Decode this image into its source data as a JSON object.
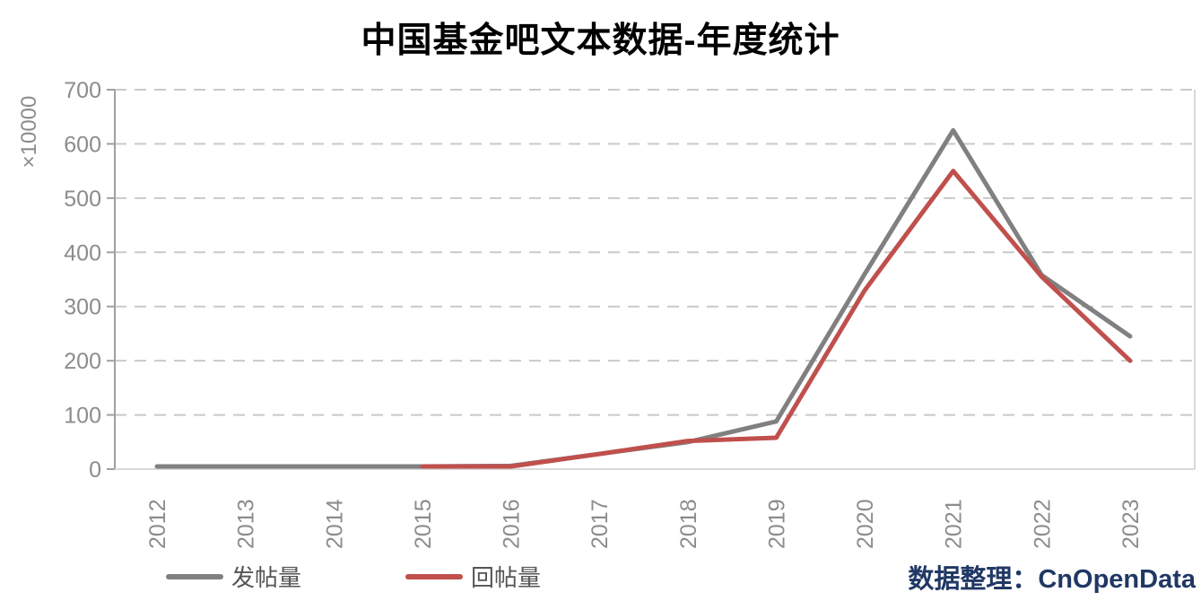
{
  "attribution": "数据整理：CnOpenData",
  "colors": {
    "gridline": "#c9c9c9",
    "y_axis_line": "#a0a0a0",
    "frame_line": "#d9d9d9",
    "tick_label": "#8c8c8c",
    "title_text": "#000000",
    "legend_text": "#545454",
    "attribution_text": "#203864",
    "background": "#ffffff"
  },
  "chart_data": {
    "type": "line",
    "title": "中国基金吧文本数据-年度统计",
    "categories": [
      "2012",
      "2013",
      "2014",
      "2015",
      "2016",
      "2017",
      "2018",
      "2019",
      "2020",
      "2021",
      "2022",
      "2023"
    ],
    "series": [
      {
        "id": "posts",
        "name": "发帖量",
        "color": "#808080",
        "values": [
          5,
          5,
          5,
          5,
          6,
          28,
          50,
          88,
          360,
          625,
          358,
          245
        ]
      },
      {
        "id": "replies",
        "name": "回帖量",
        "color": "#c0504d",
        "values": [
          null,
          null,
          null,
          5,
          5,
          28,
          52,
          58,
          330,
          550,
          355,
          200
        ]
      }
    ],
    "xlabel": "",
    "ylabel": "×10000",
    "ylim": [
      0,
      700
    ],
    "ytick_step": 100,
    "yticks": [
      0,
      100,
      200,
      300,
      400,
      500,
      600,
      700
    ],
    "x_tick_rotation": -90,
    "grid": "horizontal-dashed",
    "legend_position": "bottom-left"
  }
}
